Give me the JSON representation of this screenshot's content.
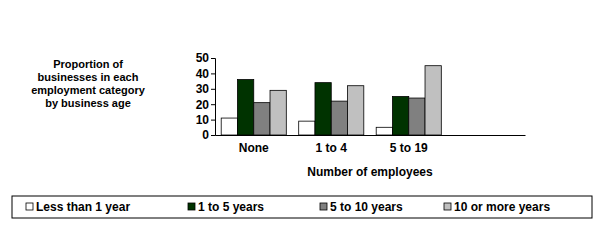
{
  "chart_data": {
    "type": "bar",
    "y_label": "Proportion of businesses in each employment category by business age",
    "x_label": "Number of employees",
    "categories": [
      "None",
      "1 to 4",
      "5 to 19",
      null
    ],
    "series": [
      {
        "name": "Less than 1 year",
        "color": "#ffffff",
        "values": [
          11,
          9,
          5,
          null
        ]
      },
      {
        "name": "1 to 5 years",
        "color": "#003300",
        "values": [
          36,
          34,
          25,
          null
        ]
      },
      {
        "name": "5 to 10 years",
        "color": "#808080",
        "values": [
          21,
          22,
          24,
          null
        ]
      },
      {
        "name": "10 or more years",
        "color": "#c0c0c0",
        "values": [
          29,
          32,
          45,
          null
        ]
      }
    ],
    "ylim": [
      0,
      50
    ],
    "yticks": [
      0,
      10,
      20,
      30,
      40,
      50
    ],
    "grid": false,
    "legend": "bottom"
  }
}
